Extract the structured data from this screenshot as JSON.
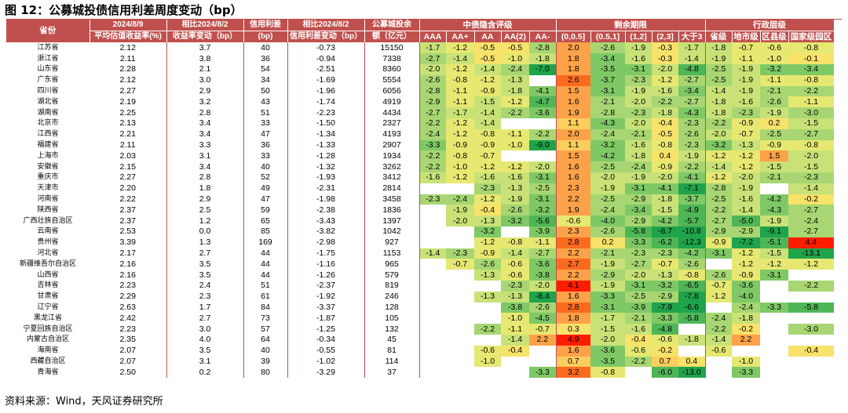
{
  "title": "图 12：公募城投债信用利差周度变动（bp）",
  "source": "资料来源：Wind，天风证券研究所",
  "headers": {
    "province": "省份",
    "yield_line1": "2024/8/9",
    "yield_line2": "平均估值收益率(%)",
    "yield_chg_line1": "相比2024/8/2",
    "yield_chg_line2": "收益率变动（bp）",
    "spread_line1": "信用利差",
    "spread_line2": "(bp)",
    "spread_chg_line1": "相比2024/8/2",
    "spread_chg_line2": "信用利差变动（bp）",
    "balance_line1": "公募城投余",
    "balance_line2": "额（亿元）",
    "group_rating": "中债隐含评级",
    "group_term": "剩余期限",
    "group_admin": "行政层级",
    "rating_cols": [
      "AAA",
      "AA+",
      "AA",
      "AA(2)",
      "AA-"
    ],
    "term_cols": [
      "(0,0.5]",
      "(0.5,1]",
      "(1,2]",
      "(2,3]",
      "大于3"
    ],
    "admin_cols": [
      "省级",
      "地市级",
      "区县级",
      "国家级园区"
    ]
  },
  "colors": {
    "header_bg": "#c0504d",
    "header_text": "#ffffff"
  },
  "rows": [
    {
      "p": "江苏省",
      "y": "2.12",
      "yc": "3.7",
      "s": "40",
      "sc": "-0.73",
      "b": "15150",
      "r": [
        "-1.7",
        "-1.2",
        "-0.5",
        "-0.5",
        "-2.8"
      ],
      "t": [
        "2.0",
        "-2.6",
        "-1.9",
        "-0.3",
        "-1.7"
      ],
      "a": [
        "-1.8",
        "-0.7",
        "-0.6",
        "-0.8"
      ]
    },
    {
      "p": "浙江省",
      "y": "2.11",
      "yc": "3.8",
      "s": "36",
      "sc": "-0.94",
      "b": "7338",
      "r": [
        "-2.7",
        "-1.4",
        "-0.5",
        "-1.0",
        "-1.8"
      ],
      "t": [
        "1.8",
        "-3.4",
        "-1.6",
        "-0.3",
        "-1.4"
      ],
      "a": [
        "-1.9",
        "-1.1",
        "-1.0",
        "-0.1"
      ]
    },
    {
      "p": "山东省",
      "y": "2.28",
      "yc": "2.1",
      "s": "54",
      "sc": "-2.51",
      "b": "8360",
      "r": [
        "-2.0",
        "-1.2",
        "-1.4",
        "-2.4",
        "-7.0"
      ],
      "t": [
        "1.8",
        "-3.5",
        "-3.1",
        "-2.0",
        "-4.8"
      ],
      "a": [
        "-2.5",
        "-1.9",
        "-3.2",
        "-3.4"
      ]
    },
    {
      "p": "广东省",
      "y": "2.12",
      "yc": "3.0",
      "s": "34",
      "sc": "-1.69",
      "b": "5554",
      "r": [
        "-2.6",
        "-0.8",
        "-1.2",
        "-1.3",
        ""
      ],
      "t": [
        "2.6",
        "-3.7",
        "-2.3",
        "-1.2",
        "-2.7"
      ],
      "a": [
        "-2.5",
        "-1.9",
        "-1.1",
        "-0.8"
      ]
    },
    {
      "p": "四川省",
      "y": "2.27",
      "yc": "2.9",
      "s": "50",
      "sc": "-1.96",
      "b": "6056",
      "r": [
        "-2.8",
        "-1.1",
        "-0.9",
        "-1.8",
        "-4.1"
      ],
      "t": [
        "1.5",
        "-3.1",
        "-1.9",
        "-1.6",
        "-3.4"
      ],
      "a": [
        "-1.4",
        "-1.9",
        "-2.1",
        "-2.2"
      ]
    },
    {
      "p": "湖北省",
      "y": "2.19",
      "yc": "3.2",
      "s": "43",
      "sc": "-1.74",
      "b": "4919",
      "r": [
        "-2.9",
        "-1.1",
        "-1.5",
        "-1.2",
        "-4.7"
      ],
      "t": [
        "1.6",
        "-2.1",
        "-2.0",
        "-2.2",
        "-2.7"
      ],
      "a": [
        "-1.8",
        "-1.6",
        "-2.6",
        "-1.1"
      ]
    },
    {
      "p": "湖南省",
      "y": "2.25",
      "yc": "2.8",
      "s": "51",
      "sc": "-2.23",
      "b": "4434",
      "r": [
        "-2.7",
        "-1.7",
        "-1.4",
        "-2.2",
        "-3.6"
      ],
      "t": [
        "1.9",
        "-2.8",
        "-2.3",
        "-1.8",
        "-4.3"
      ],
      "a": [
        "-1.8",
        "-2.3",
        "-1.9",
        "-3.0"
      ]
    },
    {
      "p": "北京市",
      "y": "2.13",
      "yc": "3.4",
      "s": "33",
      "sc": "-1.50",
      "b": "2327",
      "r": [
        "-2.2",
        "-1.2",
        "-1.4",
        "",
        ""
      ],
      "t": [
        "1.1",
        "-4.3",
        "-2.0",
        "-0.4",
        "-2.3"
      ],
      "a": [
        "-2.2",
        "-0.9",
        "0.2",
        "-1.5"
      ]
    },
    {
      "p": "江西省",
      "y": "2.21",
      "yc": "3.4",
      "s": "47",
      "sc": "-1.34",
      "b": "4193",
      "r": [
        "-2.4",
        "-1.2",
        "-0.8",
        "-1.1",
        "-2.2"
      ],
      "t": [
        "2.0",
        "-2.4",
        "-2.1",
        "-0.5",
        "-2.6"
      ],
      "a": [
        "-2.0",
        "-0.7",
        "-2.5",
        "-2.7"
      ]
    },
    {
      "p": "福建省",
      "y": "2.11",
      "yc": "3.3",
      "s": "36",
      "sc": "-1.33",
      "b": "2907",
      "r": [
        "-3.3",
        "-0.9",
        "-0.9",
        "-1.0",
        "-9.0"
      ],
      "t": [
        "1.1",
        "-3.2",
        "-1.6",
        "-0.8",
        "-2.3"
      ],
      "a": [
        "-3.2",
        "-1.3",
        "-0.9",
        "-0.8"
      ]
    },
    {
      "p": "上海市",
      "y": "2.03",
      "yc": "3.1",
      "s": "33",
      "sc": "-1.28",
      "b": "1934",
      "r": [
        "-2.2",
        "-0.8",
        "-0.7",
        "",
        ""
      ],
      "t": [
        "1.5",
        "-4.2",
        "-1.8",
        "0.4",
        "-1.9"
      ],
      "a": [
        "-1.2",
        "-1.2",
        "1.5",
        "-2.0"
      ]
    },
    {
      "p": "安徽省",
      "y": "2.15",
      "yc": "3.4",
      "s": "40",
      "sc": "-1.32",
      "b": "3262",
      "r": [
        "-2.2",
        "-1.0",
        "-1.2",
        "-1.2",
        "-2.0"
      ],
      "t": [
        "1.6",
        "-2.5",
        "-2.4",
        "-0.9",
        "-2.2"
      ],
      "a": [
        "-1.4",
        "-1.2",
        "-1.5",
        "-1.5"
      ]
    },
    {
      "p": "重庆市",
      "y": "2.27",
      "yc": "2.8",
      "s": "52",
      "sc": "-1.93",
      "b": "3412",
      "r": [
        "-1.6",
        "-1.2",
        "-1.6",
        "-1.6",
        "-3.1"
      ],
      "t": [
        "1.6",
        "-2.0",
        "-1.9",
        "-2.0",
        "-4.1"
      ],
      "a": [
        "-1.2",
        "-2.0",
        "-2.1",
        "-2.3"
      ]
    },
    {
      "p": "天津市",
      "y": "2.20",
      "yc": "1.8",
      "s": "49",
      "sc": "-2.31",
      "b": "2814",
      "r": [
        "",
        "",
        "-2.3",
        "-1.3",
        "-2.5"
      ],
      "t": [
        "2.3",
        "-1.9",
        "-3.1",
        "-4.1",
        "-7.1"
      ],
      "a": [
        "-2.8",
        "-1.9",
        "",
        "-1.4"
      ]
    },
    {
      "p": "河南省",
      "y": "2.22",
      "yc": "2.9",
      "s": "47",
      "sc": "-1.98",
      "b": "3458",
      "r": [
        "-2.3",
        "-2.4",
        "-1.2",
        "-1.9",
        "-3.1"
      ],
      "t": [
        "2.2",
        "-2.5",
        "-2.9",
        "-1.8",
        "-3.7"
      ],
      "a": [
        "-2.5",
        "-1.6",
        "-4.2",
        "-0.2"
      ]
    },
    {
      "p": "陕西省",
      "y": "2.37",
      "yc": "2.5",
      "s": "59",
      "sc": "-2.38",
      "b": "1836",
      "r": [
        "",
        "-1.9",
        "-0.4",
        "-2.6",
        "-3.2"
      ],
      "t": [
        "1.9",
        "-2.4",
        "-3.4",
        "-1.5",
        "-4.9"
      ],
      "a": [
        "-2.2",
        "-1.4",
        "-4.3",
        "-2.7"
      ]
    },
    {
      "p": "广西壮族自治区",
      "y": "2.37",
      "yc": "1.2",
      "s": "65",
      "sc": "-3.43",
      "b": "1397",
      "r": [
        "",
        "-2.0",
        "-1.3",
        "-3.2",
        "-5.6"
      ],
      "t": [
        "-0.6",
        "-4.0",
        "-2.9",
        "-4.2",
        "-5.7"
      ],
      "a": [
        "-2.7",
        "-5.0",
        "-1.9",
        "-2.4"
      ]
    },
    {
      "p": "云南省",
      "y": "2.53",
      "yc": "0.0",
      "s": "85",
      "sc": "-3.82",
      "b": "1042",
      "r": [
        "",
        "",
        "-3.2",
        "",
        "-3.9"
      ],
      "t": [
        "2.3",
        "-2.6",
        "-5.8",
        "-8.7",
        "-10.8"
      ],
      "a": [
        "-2.9",
        "-2.9",
        "-9.1",
        "-2.7"
      ]
    },
    {
      "p": "贵州省",
      "y": "3.39",
      "yc": "1.3",
      "s": "169",
      "sc": "-2.98",
      "b": "927",
      "r": [
        "",
        "",
        "-1.2",
        "-0.8",
        "-1.1"
      ],
      "t": [
        "2.8",
        "0.2",
        "-3.3",
        "-6.2",
        "-12.3"
      ],
      "a": [
        "-0.9",
        "-7.2",
        "-5.1",
        "4.4"
      ]
    },
    {
      "p": "河北省",
      "y": "2.17",
      "yc": "2.7",
      "s": "44",
      "sc": "-1.75",
      "b": "1153",
      "r": [
        "-1.4",
        "-2.3",
        "-0.9",
        "-1.4",
        "-2.7"
      ],
      "t": [
        "2.2",
        "-2.1",
        "-2.3",
        "-2.3",
        "-4.2"
      ],
      "a": [
        "-3.1",
        "-1.2",
        "-1.5",
        "-13.1"
      ]
    },
    {
      "p": "新疆维吾尔自治区",
      "y": "2.16",
      "yc": "3.5",
      "s": "44",
      "sc": "-1.16",
      "b": "965",
      "r": [
        "",
        "-0.7",
        "-2.6",
        "-0.6",
        "-3.6"
      ],
      "t": [
        "2.7",
        "-1.9",
        "-2.7",
        "-0.7",
        "-2.6"
      ],
      "a": [
        "",
        "-1.2",
        "-1.2",
        "-1.2"
      ]
    },
    {
      "p": "山西省",
      "y": "2.16",
      "yc": "3.5",
      "s": "44",
      "sc": "-1.26",
      "b": "579",
      "r": [
        "",
        "",
        "-1.3",
        "-0.6",
        "-3.8"
      ],
      "t": [
        "2.2",
        "-2.9",
        "-2.0",
        "-1.3",
        "-0.8"
      ],
      "a": [
        "-2.6",
        "-0.9",
        "-3.1",
        ""
      ]
    },
    {
      "p": "吉林省",
      "y": "2.23",
      "yc": "2.4",
      "s": "51",
      "sc": "-2.37",
      "b": "819",
      "r": [
        "",
        "",
        "",
        "-2.3",
        "-2.0"
      ],
      "t": [
        "4.1",
        "-1.9",
        "-3.1",
        "-3.2",
        "-6.5"
      ],
      "a": [
        "-0.7",
        "-3.6",
        "",
        "-2.2"
      ]
    },
    {
      "p": "甘肃省",
      "y": "2.29",
      "yc": "2.3",
      "s": "61",
      "sc": "-1.92",
      "b": "246",
      "r": [
        "",
        "",
        "-1.3",
        "-1.3",
        "-8.4"
      ],
      "t": [
        "1.6",
        "-3.3",
        "-2.5",
        "-2.9",
        "-7.8"
      ],
      "a": [
        "-1.2",
        "-4.0",
        "",
        ""
      ]
    },
    {
      "p": "辽宁省",
      "y": "2.63",
      "yc": "1.7",
      "s": "84",
      "sc": "-3.37",
      "b": "128",
      "r": [
        "",
        "",
        "",
        "-3.8",
        "-2.6"
      ],
      "t": [
        "2.8",
        "-3.1",
        "-3.9",
        "-7.9",
        "-6.6"
      ],
      "a": [
        "",
        "-2.4",
        "-3.3",
        "-5.8"
      ]
    },
    {
      "p": "黑龙江省",
      "y": "2.42",
      "yc": "2.7",
      "s": "73",
      "sc": "-1.87",
      "b": "105",
      "r": [
        "",
        "",
        "",
        "-1.0",
        "-4.5"
      ],
      "t": [
        "1.8",
        "-1.7",
        "-2.1",
        "-3.3",
        "-5.8"
      ],
      "a": [
        "-2.4",
        "-1.8",
        "",
        ""
      ]
    },
    {
      "p": "宁夏回族自治区",
      "y": "2.23",
      "yc": "3.0",
      "s": "57",
      "sc": "-1.25",
      "b": "132",
      "r": [
        "",
        "",
        "-2.2",
        "-1.1",
        "-0.7"
      ],
      "t": [
        "0.3",
        "-1.5",
        "-1.6",
        "-4.8",
        ""
      ],
      "a": [
        "-2.2",
        "-0.2",
        "",
        "-3.0"
      ]
    },
    {
      "p": "内蒙古自治区",
      "y": "2.35",
      "yc": "4.0",
      "s": "64",
      "sc": "-0.34",
      "b": "45",
      "r": [
        "",
        "",
        "",
        "-1.4",
        "2.2"
      ],
      "t": [
        "4.9",
        "-2.0",
        "-0.4",
        "-0.6",
        "-1.8"
      ],
      "a": [
        "-1.4",
        "2.2",
        "",
        ""
      ]
    },
    {
      "p": "海南省",
      "y": "2.07",
      "yc": "3.5",
      "s": "40",
      "sc": "-0.55",
      "b": "81",
      "r": [
        "",
        "",
        "-0.6",
        "-0.4",
        ""
      ],
      "t": [
        "1.6",
        "-3.6",
        "-0.6",
        "-0.2",
        ""
      ],
      "a": [
        "-0.6",
        "",
        "",
        "-0.4"
      ]
    },
    {
      "p": "西藏自治区",
      "y": "2.07",
      "yc": "3.1",
      "s": "39",
      "sc": "-1.02",
      "b": "114",
      "r": [
        "",
        "",
        "-1.0",
        "",
        ""
      ],
      "t": [
        "0.7",
        "-3.5",
        "-2.2",
        "0.7",
        "0.4"
      ],
      "a": [
        "",
        "-1.0",
        "",
        ""
      ]
    },
    {
      "p": "青海省",
      "y": "2.50",
      "yc": "0.2",
      "s": "80",
      "sc": "-3.29",
      "b": "37",
      "r": [
        "",
        "",
        "",
        "",
        "-3.3"
      ],
      "t": [
        "3.2",
        "-0.8",
        "",
        "-6.0",
        "-13.0"
      ],
      "a": [
        "",
        "-3.3",
        "",
        ""
      ]
    }
  ]
}
